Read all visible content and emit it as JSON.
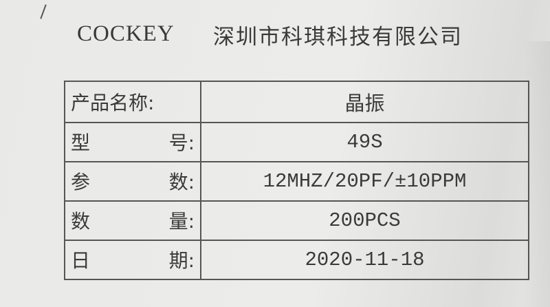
{
  "header": {
    "brand": "COCKEY",
    "company": "深圳市科琪科技有限公司"
  },
  "rows": [
    {
      "label": "产品名称:",
      "value": "晶振"
    },
    {
      "label_a": "型",
      "label_b": "号:",
      "value": "49S"
    },
    {
      "label_a": "参",
      "label_b": "数:",
      "value": "12MHZ/20PF/±10PPM"
    },
    {
      "label_a": "数",
      "label_b": "量:",
      "value": "200PCS"
    },
    {
      "label_a": "日",
      "label_b": "期:",
      "value": "2020-11-18"
    }
  ]
}
